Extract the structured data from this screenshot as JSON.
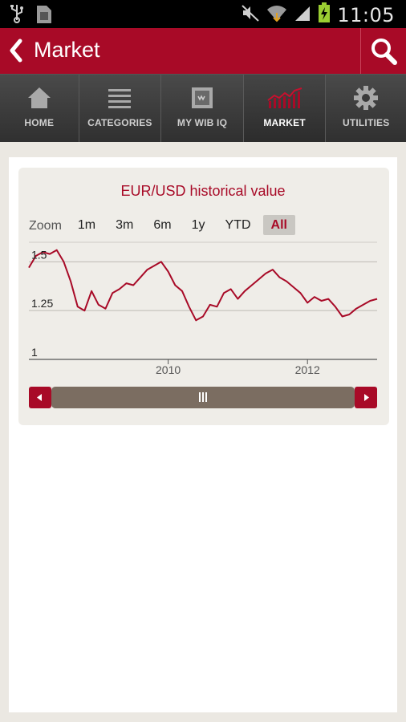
{
  "status_bar": {
    "time": "11:05",
    "icons": [
      "usb-icon",
      "sim-icon",
      "mute-icon",
      "wifi-icon",
      "signal-icon",
      "battery-charging-icon"
    ]
  },
  "action_bar": {
    "title": "Market",
    "back_icon": "back-chevron-icon",
    "search_icon": "search-icon"
  },
  "tabs": [
    {
      "label": "HOME",
      "icon": "home-icon",
      "active": false
    },
    {
      "label": "CATEGORIES",
      "icon": "list-icon",
      "active": false
    },
    {
      "label": "MY WIB IQ",
      "icon": "wib-icon",
      "active": false
    },
    {
      "label": "MARKET",
      "icon": "market-chart-icon",
      "active": true
    },
    {
      "label": "UTILITIES",
      "icon": "gear-icon",
      "active": false
    }
  ],
  "zoom": {
    "label": "Zoom",
    "options": [
      "1m",
      "3m",
      "6m",
      "1y",
      "YTD",
      "All"
    ],
    "selected": "All"
  },
  "navigator": {
    "left_icon": "arrow-left-icon",
    "right_icon": "arrow-right-icon",
    "handle_icon": "grip-icon"
  },
  "colors": {
    "accent": "#a80a27",
    "tabbar": "#3a3a3a",
    "card": "#efede8",
    "scrollbar": "#7b6d61"
  },
  "chart_data": {
    "type": "line",
    "title": "EUR/USD historical value",
    "series": [
      {
        "x": [
          "2008.0",
          "2008.1",
          "2008.2",
          "2008.3",
          "2008.4",
          "2008.5",
          "2008.6",
          "2008.7",
          "2008.8",
          "2008.9",
          "2009.0",
          "2009.1",
          "2009.2",
          "2009.3",
          "2009.4",
          "2009.5",
          "2009.6",
          "2009.7",
          "2009.8",
          "2009.9",
          "2010.0",
          "2010.1",
          "2010.2",
          "2010.3",
          "2010.4",
          "2010.5",
          "2010.6",
          "2010.7",
          "2010.8",
          "2010.9",
          "2011.0",
          "2011.1",
          "2011.2",
          "2011.3",
          "2011.4",
          "2011.5",
          "2011.6",
          "2011.7",
          "2011.8",
          "2011.9",
          "2012.0",
          "2012.1",
          "2012.2",
          "2012.3",
          "2012.4",
          "2012.5",
          "2012.6",
          "2012.7",
          "2012.8",
          "2012.9",
          "2013.0"
        ],
        "values": [
          1.47,
          1.53,
          1.55,
          1.54,
          1.56,
          1.5,
          1.4,
          1.27,
          1.25,
          1.35,
          1.28,
          1.26,
          1.34,
          1.36,
          1.39,
          1.38,
          1.42,
          1.46,
          1.48,
          1.5,
          1.45,
          1.38,
          1.35,
          1.27,
          1.2,
          1.22,
          1.28,
          1.27,
          1.34,
          1.36,
          1.31,
          1.35,
          1.38,
          1.41,
          1.44,
          1.46,
          1.42,
          1.4,
          1.37,
          1.34,
          1.29,
          1.32,
          1.3,
          1.31,
          1.27,
          1.22,
          1.23,
          1.26,
          1.28,
          1.3,
          1.31
        ]
      }
    ],
    "y_ticks": [
      "1.5",
      "1.25",
      "1"
    ],
    "x_ticks": [
      "2010",
      "2012"
    ],
    "ylim": [
      1.0,
      1.6
    ],
    "xlim": [
      2008.0,
      2013.0
    ],
    "grid": true
  }
}
